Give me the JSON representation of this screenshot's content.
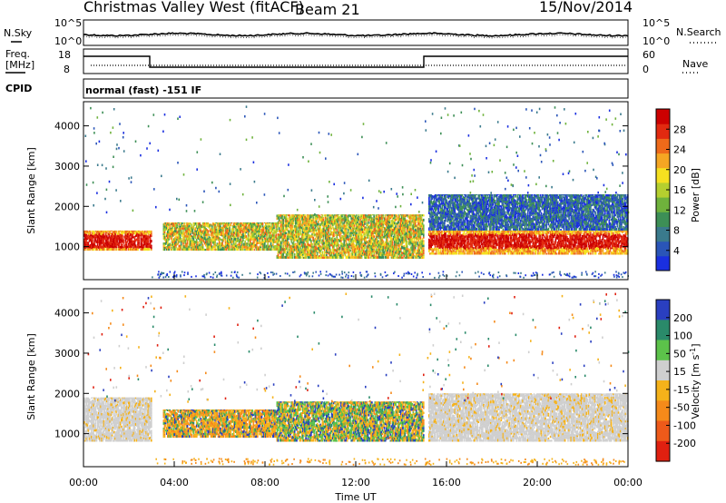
{
  "header": {
    "station": "Christmas Valley West (fitACF)",
    "beam": "Beam 21",
    "date": "15/Nov/2014"
  },
  "top_panels": {
    "noise": {
      "left_label": "N.Sky",
      "right_label": "N.Search",
      "left_ticks": [
        "10^5",
        "10^0"
      ],
      "right_ticks": [
        "10^5",
        "10^0"
      ]
    },
    "freq": {
      "left_label_1": "Freq.",
      "left_label_2": "[MHz]",
      "right_label": "Nave",
      "left_ticks": [
        "18",
        "8"
      ],
      "right_ticks": [
        "60",
        "0"
      ]
    },
    "cpid": {
      "label": "CPID",
      "text": "normal (fast) -151 IF"
    }
  },
  "chart_data": [
    {
      "type": "heatmap",
      "name": "power",
      "ylabel": "Slant Range [km]",
      "ylim": [
        180,
        4600
      ],
      "xlim": [
        "00:00",
        "24:00"
      ],
      "yticks": [
        1000,
        2000,
        3000,
        4000
      ],
      "colorbar": {
        "title": "Power [dB]",
        "ticks": [
          4,
          8,
          12,
          16,
          20,
          24,
          28
        ],
        "colors": [
          "#1a2fe0",
          "#2a55b8",
          "#3a7a8c",
          "#3d8f56",
          "#6fb23c",
          "#b5cf2f",
          "#f5e020",
          "#f5a623",
          "#ee6a1a",
          "#e22a10",
          "#cc0000"
        ]
      },
      "bands": [
        {
          "t0": 0.0,
          "t1": 3.0,
          "r0": 900,
          "r1": 1400,
          "level": "high"
        },
        {
          "t0": 3.5,
          "t1": 8.5,
          "r0": 900,
          "r1": 1600,
          "level": "mid"
        },
        {
          "t0": 8.5,
          "t1": 15.0,
          "r0": 700,
          "r1": 1800,
          "level": "mid"
        },
        {
          "t0": 15.2,
          "t1": 24.0,
          "r0": 800,
          "r1": 1400,
          "level": "high"
        },
        {
          "t0": 15.2,
          "t1": 24.0,
          "r0": 1400,
          "r1": 2300,
          "level": "low"
        }
      ]
    },
    {
      "type": "heatmap",
      "name": "velocity",
      "ylabel": "Slant Range [km]",
      "xlabel": "Time UT",
      "ylim": [
        180,
        4600
      ],
      "xlim": [
        "00:00",
        "24:00"
      ],
      "yticks": [
        1000,
        2000,
        3000,
        4000
      ],
      "xticks": [
        "00:00",
        "04:00",
        "08:00",
        "12:00",
        "16:00",
        "20:00",
        "00:00"
      ],
      "colorbar": {
        "title": "Velocity [m s",
        "title_sup": "-1",
        "title_end": "]",
        "ticks": [
          200,
          100,
          50,
          15,
          -15,
          -50,
          -100,
          -200
        ],
        "colors": [
          "#2a3fc0",
          "#2a8a6a",
          "#5cc24a",
          "#cfcfcf",
          "#f5b21a",
          "#f58a1a",
          "#ee5a1a",
          "#e02010"
        ]
      },
      "bands": [
        {
          "t0": 0.0,
          "t1": 3.0,
          "r0": 800,
          "r1": 1900,
          "level": "ground"
        },
        {
          "t0": 3.5,
          "t1": 8.5,
          "r0": 900,
          "r1": 1600,
          "level": "negative"
        },
        {
          "t0": 8.5,
          "t1": 15.0,
          "r0": 800,
          "r1": 1800,
          "level": "mixed"
        },
        {
          "t0": 15.2,
          "t1": 24.0,
          "r0": 800,
          "r1": 2000,
          "level": "ground"
        }
      ]
    }
  ]
}
